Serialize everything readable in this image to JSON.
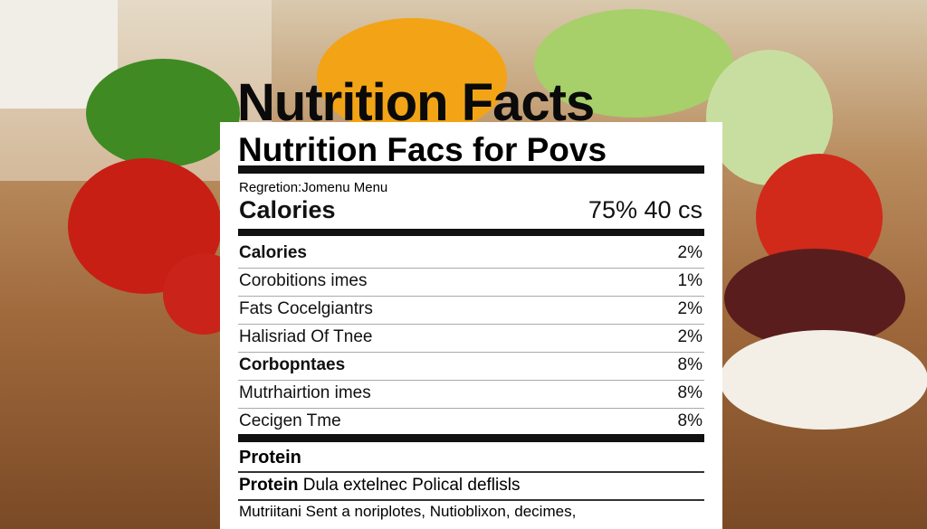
{
  "label": {
    "headline": "Nutrition Facts",
    "title": "Nutrition Facs for Povs",
    "subtitle": "Regretion:Jomenu Menu",
    "calories": {
      "name": "Calories",
      "value": "75% 40 cs"
    },
    "rows": [
      {
        "name": "Calories",
        "value": "2%",
        "bold": true
      },
      {
        "name": "Corobitions imes",
        "value": "1%",
        "bold": false
      },
      {
        "name": "Fats Cocelgiantrs",
        "value": "2%",
        "bold": false
      },
      {
        "name": "Halisriad Of Tnee",
        "value": "2%",
        "bold": false
      },
      {
        "name": "Corbopntaes",
        "value": "8%",
        "bold": true
      },
      {
        "name": "Mutrhairtion imes",
        "value": "8%",
        "bold": false
      },
      {
        "name": "Cecigen Tme",
        "value": "8%",
        "bold": false
      }
    ],
    "protein_heading": "Protein",
    "protein_line": {
      "name": "Protein",
      "text": "Dula extelnec Polical deflisls"
    },
    "footnote": "Mutriitani Sent a noriplotes, Nutioblixon, decimes,"
  }
}
